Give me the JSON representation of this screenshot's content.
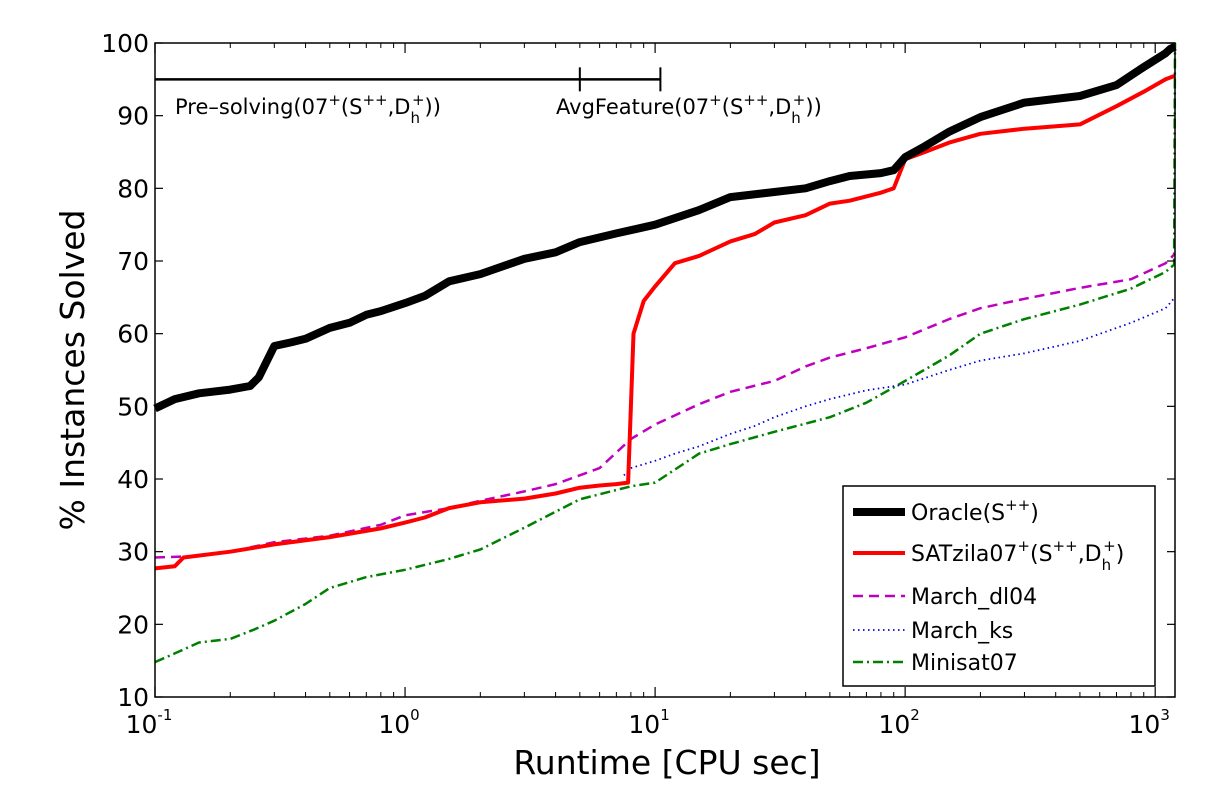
{
  "chart_data": {
    "type": "line",
    "xscale": "log",
    "xlabel": "Runtime [CPU sec]",
    "ylabel": "% Instances Solved",
    "xlim": [
      0.1,
      1200
    ],
    "ylim": [
      10,
      100
    ],
    "yticks": [
      "10",
      "20",
      "30",
      "40",
      "50",
      "60",
      "70",
      "80",
      "90",
      "100"
    ],
    "xticks": [
      {
        "base": "10",
        "exp": "-1",
        "value": 0.1
      },
      {
        "base": "10",
        "exp": "0",
        "value": 1
      },
      {
        "base": "10",
        "exp": "1",
        "value": 10
      },
      {
        "base": "10",
        "exp": "2",
        "value": 100
      },
      {
        "base": "10",
        "exp": "3",
        "value": 1000
      }
    ],
    "grid": false,
    "legend_position": "bottom-right",
    "annotations": {
      "bar_y": 95,
      "bar_ends": [
        0.1,
        5,
        10.5
      ],
      "presolving": {
        "main": "Pre–solving(07",
        "sup1": "+",
        "mid": "(S",
        "sup2": "++",
        "comma": ",D",
        "sub": "h",
        "sup3": "+",
        "end": "))"
      },
      "avgfeature": {
        "main": "AvgFeature(07",
        "sup1": "+",
        "mid": "(S",
        "sup2": "++",
        "comma": ",D",
        "sub": "h",
        "sup3": "+",
        "end": "))"
      }
    },
    "legend": {
      "oracle": {
        "main": "Oracle(S",
        "sup": "++",
        "end": ")"
      },
      "satzilla": {
        "main": "SATzila07",
        "sup1": "+",
        "mid": "(S",
        "sup2": "++",
        "comma": ",D",
        "sub": "h",
        "sup3": "+",
        "end": ")"
      },
      "march_dl04": "March_dl04",
      "march_ks": "March_ks",
      "minisat": "Minisat07"
    },
    "series": [
      {
        "name": "Oracle(S++)",
        "color": "#000000",
        "style": "solid",
        "x": [
          0.1,
          0.12,
          0.15,
          0.2,
          0.24,
          0.26,
          0.3,
          0.35,
          0.4,
          0.5,
          0.6,
          0.7,
          0.8,
          1.0,
          1.2,
          1.5,
          2,
          3,
          4,
          5,
          7,
          10,
          15,
          20,
          30,
          40,
          50,
          60,
          80,
          90,
          100,
          120,
          150,
          200,
          300,
          500,
          700,
          900,
          1100,
          1150,
          1200
        ],
        "y": [
          49.7,
          51,
          51.8,
          52.3,
          52.8,
          54,
          58.3,
          58.8,
          59.3,
          60.8,
          61.5,
          62.6,
          63.1,
          64.2,
          65.2,
          67.2,
          68.2,
          70.3,
          71.2,
          72.6,
          73.8,
          75,
          77,
          78.8,
          79.5,
          80,
          81,
          81.7,
          82.1,
          82.5,
          84.3,
          85.8,
          87.8,
          89.8,
          91.8,
          92.7,
          94.2,
          96.7,
          98.6,
          99.2,
          99.5
        ]
      },
      {
        "name": "SATzila07+(S++,Dh+)",
        "color": "#ff0000",
        "style": "solid",
        "x": [
          0.1,
          0.12,
          0.13,
          0.2,
          0.3,
          0.5,
          0.8,
          1.0,
          1.2,
          1.5,
          2,
          3,
          4,
          5,
          6,
          7,
          7.8,
          8.0,
          8.2,
          9,
          10,
          12,
          15,
          20,
          25,
          30,
          40,
          50,
          60,
          80,
          90,
          100,
          120,
          150,
          200,
          300,
          500,
          700,
          900,
          1100,
          1200
        ],
        "y": [
          27.7,
          28,
          29.2,
          30,
          31,
          32,
          33.2,
          34,
          34.7,
          36,
          36.8,
          37.3,
          38,
          38.8,
          39.1,
          39.3,
          39.5,
          50,
          60,
          64.5,
          66.5,
          69.7,
          70.7,
          72.7,
          73.7,
          75.3,
          76.3,
          77.9,
          78.3,
          79.4,
          80,
          84,
          85,
          86.3,
          87.5,
          88.2,
          88.8,
          91.3,
          93.3,
          95,
          95.5
        ]
      },
      {
        "name": "March_dl04",
        "color": "#bf00bf",
        "style": "dashed",
        "x": [
          0.1,
          0.15,
          0.2,
          0.3,
          0.5,
          0.8,
          1.0,
          1.5,
          2,
          3,
          4,
          6,
          8,
          10,
          15,
          20,
          30,
          40,
          50,
          70,
          100,
          150,
          200,
          300,
          500,
          800,
          1100,
          1200
        ],
        "y": [
          29.2,
          29.4,
          30,
          31.3,
          32.2,
          33.7,
          35,
          36,
          37,
          38.3,
          39.3,
          41.5,
          45.5,
          47.5,
          50.3,
          52,
          53.5,
          55.5,
          56.7,
          58,
          59.5,
          62,
          63.5,
          64.8,
          66.3,
          67.5,
          69.7,
          71
        ]
      },
      {
        "name": "March_ks",
        "color": "#0000dd",
        "style": "dotted",
        "x": [
          7.5,
          8,
          10,
          12,
          15,
          20,
          25,
          30,
          40,
          50,
          70,
          100,
          150,
          200,
          300,
          500,
          800,
          1100,
          1200
        ],
        "y": [
          40.5,
          41.5,
          42.5,
          43.5,
          44.5,
          46.2,
          47.3,
          48.5,
          50,
          51,
          52.2,
          53,
          55,
          56.3,
          57.3,
          59,
          61.5,
          63.5,
          65
        ]
      },
      {
        "name": "Minisat07",
        "color": "#008000",
        "style": "dashdot",
        "x": [
          0.1,
          0.12,
          0.15,
          0.2,
          0.25,
          0.3,
          0.4,
          0.5,
          0.7,
          1.0,
          1.5,
          2,
          3,
          5,
          8,
          10,
          12,
          15,
          20,
          30,
          50,
          70,
          100,
          150,
          200,
          300,
          500,
          800,
          1100,
          1190,
          1200
        ],
        "y": [
          14.8,
          16,
          17.5,
          18,
          19.3,
          20.5,
          22.8,
          25,
          26.5,
          27.5,
          29,
          30.3,
          33.3,
          37.2,
          39,
          39.5,
          41.3,
          43.5,
          44.8,
          46.5,
          48.5,
          50.5,
          53.5,
          57,
          60,
          62,
          64,
          66.2,
          68.5,
          69.5,
          100
        ]
      }
    ]
  }
}
